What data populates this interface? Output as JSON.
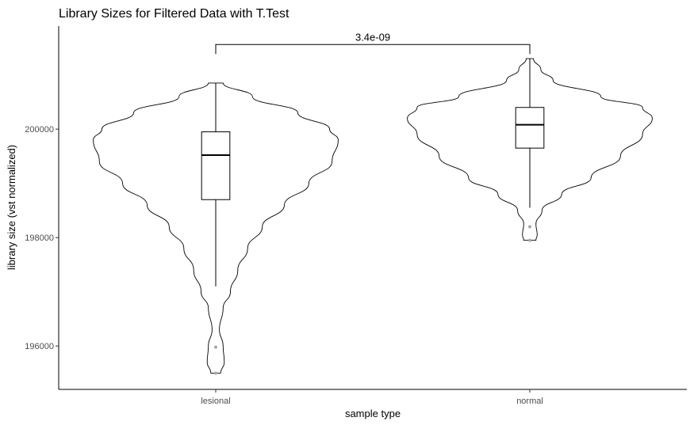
{
  "chart_data": {
    "type": "violin",
    "title": "Library Sizes for Filtered Data with T.Test",
    "xlabel": "sample type",
    "ylabel": "library size (vst normalized)",
    "categories": [
      "lesional",
      "normal"
    ],
    "ylim": [
      195200,
      201900
    ],
    "yticks": [
      196000,
      198000,
      200000
    ],
    "ytick_labels": [
      "196000",
      "198000",
      "200000"
    ],
    "grid": false,
    "legend": "none",
    "line_color": "#000000",
    "outlier_color": "#a6a6a6",
    "boxes": [
      {
        "category": "lesional",
        "min": 197100,
        "q1": 198700,
        "median": 199520,
        "q3": 199950,
        "max": 200850
      },
      {
        "category": "normal",
        "min": 198550,
        "q1": 199650,
        "median": 200080,
        "q3": 200400,
        "max": 201300
      }
    ],
    "violins": [
      {
        "category": "lesional",
        "profile": [
          [
            195500,
            0.04
          ],
          [
            195700,
            0.07
          ],
          [
            196000,
            0.06
          ],
          [
            196300,
            0.03
          ],
          [
            196700,
            0.06
          ],
          [
            197000,
            0.12
          ],
          [
            197400,
            0.18
          ],
          [
            197800,
            0.26
          ],
          [
            198200,
            0.38
          ],
          [
            198600,
            0.56
          ],
          [
            199000,
            0.76
          ],
          [
            199400,
            0.95
          ],
          [
            199800,
            1.0
          ],
          [
            200000,
            0.93
          ],
          [
            200300,
            0.67
          ],
          [
            200600,
            0.3
          ],
          [
            200850,
            0.06
          ]
        ]
      },
      {
        "category": "normal",
        "profile": [
          [
            197950,
            0.05
          ],
          [
            198050,
            0.06
          ],
          [
            198250,
            0.05
          ],
          [
            198500,
            0.1
          ],
          [
            198800,
            0.26
          ],
          [
            199100,
            0.5
          ],
          [
            199500,
            0.74
          ],
          [
            199900,
            0.92
          ],
          [
            200200,
            1.0
          ],
          [
            200400,
            0.92
          ],
          [
            200600,
            0.58
          ],
          [
            200900,
            0.19
          ],
          [
            201100,
            0.09
          ],
          [
            201300,
            0.03
          ]
        ]
      }
    ],
    "outliers": [
      {
        "category": "lesional",
        "value": 195980
      },
      {
        "category": "lesional",
        "value": 195500
      },
      {
        "category": "normal",
        "value": 198200
      },
      {
        "category": "normal",
        "value": 197950
      }
    ],
    "annotation": {
      "label": "3.4e-09",
      "from": "lesional",
      "to": "normal",
      "y": 201560
    }
  }
}
